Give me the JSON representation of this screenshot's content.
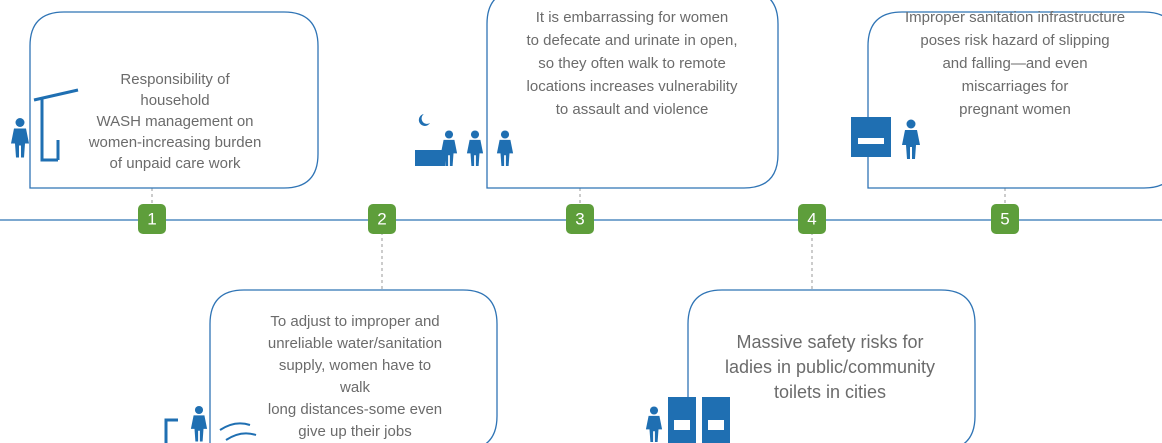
{
  "nodes": [
    {
      "number": "1",
      "lines": [
        "Responsibility of",
        "household",
        "WASH management on",
        "women-increasing burden",
        "of unpaid care work"
      ]
    },
    {
      "number": "2",
      "lines": [
        "To adjust to improper and",
        "unreliable water/sanitation",
        "supply, women have to",
        "walk",
        "long distances-some even",
        "give up their jobs"
      ]
    },
    {
      "number": "3",
      "lines": [
        "It is embarrassing for women",
        "to defecate and urinate in open,",
        "so they often walk to remote",
        "locations increases vulnerability",
        "to assault and violence"
      ]
    },
    {
      "number": "4",
      "lines": [
        "Massive safety risks for",
        "ladies in public/community",
        "toilets in cities"
      ]
    },
    {
      "number": "5",
      "lines": [
        "Improper sanitation infrastructure",
        "poses risk hazard of slipping",
        "and falling—and even",
        "miscarriages for",
        "pregnant women"
      ]
    }
  ]
}
